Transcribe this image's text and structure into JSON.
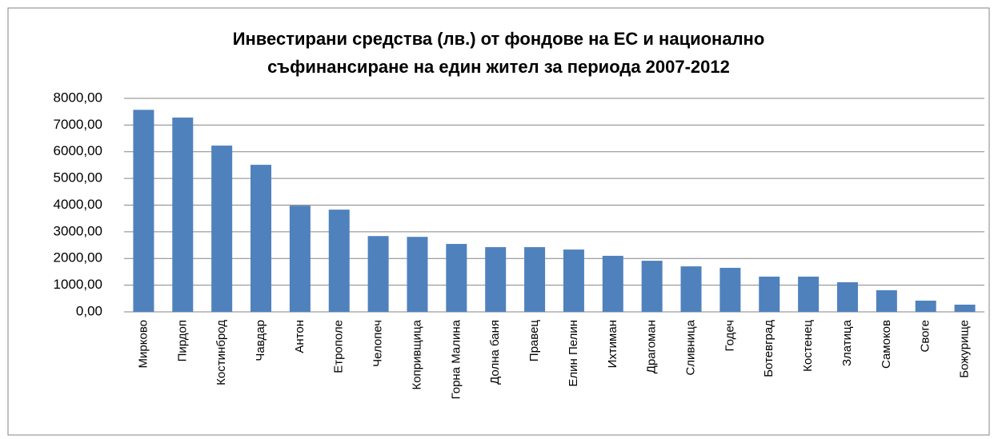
{
  "chart_data": {
    "type": "bar",
    "title": [
      "Инвестирани средства (лв.) от фондове на ЕС и национално",
      "съфинансиране на един жител за периода 2007-2012"
    ],
    "categories": [
      "Мирково",
      "Пирдоп",
      "Костинброд",
      "Чавдар",
      "Антон",
      "Етрополе",
      "Челопеч",
      "Копривщица",
      "Горна Малина",
      "Долна баня",
      "Правец",
      "Елин Пелин",
      "Ихтиман",
      "Драгоман",
      "Сливница",
      "Годеч",
      "Ботевград",
      "Костенец",
      "Златица",
      "Самоков",
      "Своге",
      "Божурище"
    ],
    "values": [
      7570,
      7280,
      6230,
      5510,
      3980,
      3830,
      2840,
      2810,
      2545,
      2425,
      2425,
      2335,
      2100,
      1915,
      1705,
      1650,
      1320,
      1320,
      1110,
      810,
      420,
      270
    ],
    "color": "#4f81bd",
    "ylim": [
      0,
      8000
    ],
    "yticks": [
      {
        "value": 0,
        "label": "0,00"
      },
      {
        "value": 1000,
        "label": "1000,00"
      },
      {
        "value": 2000,
        "label": "2000,00"
      },
      {
        "value": 3000,
        "label": "3000,00"
      },
      {
        "value": 4000,
        "label": "4000,00"
      },
      {
        "value": 5000,
        "label": "5000,00"
      },
      {
        "value": 6000,
        "label": "6000,00"
      },
      {
        "value": 7000,
        "label": "7000,00"
      },
      {
        "value": 8000,
        "label": "8000,00"
      }
    ],
    "grid": true
  }
}
